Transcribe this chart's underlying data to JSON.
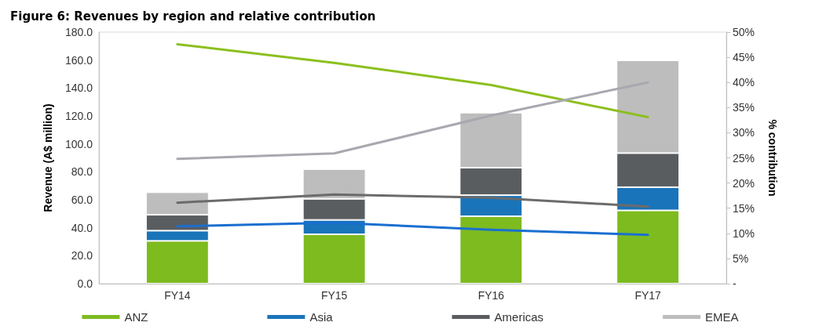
{
  "chart_data": {
    "type": "bar",
    "title": "Figure 6: Revenues by region and relative contribution",
    "categories": [
      "FY14",
      "FY15",
      "FY16",
      "FY17"
    ],
    "stacked": true,
    "ylabel": "Revenue (A$ million)",
    "y2label": "% contribution",
    "ylim": [
      0,
      180
    ],
    "yticks": [
      {
        "value": 0,
        "label": "0.0"
      },
      {
        "value": 20,
        "label": "20.0"
      },
      {
        "value": 40,
        "label": "40.0"
      },
      {
        "value": 60,
        "label": "60.0"
      },
      {
        "value": 80,
        "label": "80.0"
      },
      {
        "value": 100,
        "label": "100.0"
      },
      {
        "value": 120,
        "label": "120.0"
      },
      {
        "value": 140,
        "label": "140.0"
      },
      {
        "value": 160,
        "label": "160.0"
      },
      {
        "value": 180,
        "label": "180.0"
      }
    ],
    "y2lim": [
      0,
      50
    ],
    "y2ticks": [
      {
        "value": 0,
        "label": "-"
      },
      {
        "value": 5,
        "label": "5%"
      },
      {
        "value": 10,
        "label": "10%"
      },
      {
        "value": 15,
        "label": "15%"
      },
      {
        "value": 20,
        "label": "20%"
      },
      {
        "value": 25,
        "label": "25%"
      },
      {
        "value": 30,
        "label": "30%"
      },
      {
        "value": 35,
        "label": "35%"
      },
      {
        "value": 40,
        "label": "40%"
      },
      {
        "value": 45,
        "label": "45%"
      },
      {
        "value": 50,
        "label": "50%"
      }
    ],
    "grid": false,
    "legend": "bottom",
    "series": [
      {
        "name": "ANZ",
        "color": "#7dbb1f",
        "values": [
          30.6,
          35.3,
          48.2,
          52.4
        ]
      },
      {
        "name": "Asia",
        "color": "#1a74b9",
        "values": [
          7.3,
          10.3,
          15.1,
          16.6
        ]
      },
      {
        "name": "Americas",
        "color": "#5a5d60",
        "values": [
          11.4,
          15.1,
          19.7,
          24.4
        ]
      },
      {
        "name": "EMEA",
        "color": "#bdbdbd",
        "values": [
          16.1,
          21.3,
          39.4,
          66.4
        ]
      },
      {
        "type": "line",
        "axis": "y2",
        "color": "#8cbf1f",
        "values": [
          47.6,
          43.9,
          39.5,
          33.1
        ]
      },
      {
        "type": "line",
        "axis": "y2",
        "color": "#1a6fd0",
        "values": [
          11.4,
          12.1,
          10.7,
          9.7
        ]
      },
      {
        "type": "line",
        "axis": "y2",
        "color": "#6b6b6b",
        "values": [
          16.1,
          17.7,
          17.1,
          15.3
        ]
      },
      {
        "type": "line",
        "axis": "y2",
        "color": "#a8a8b0",
        "values": [
          24.8,
          25.9,
          33.4,
          40.0
        ]
      }
    ]
  }
}
